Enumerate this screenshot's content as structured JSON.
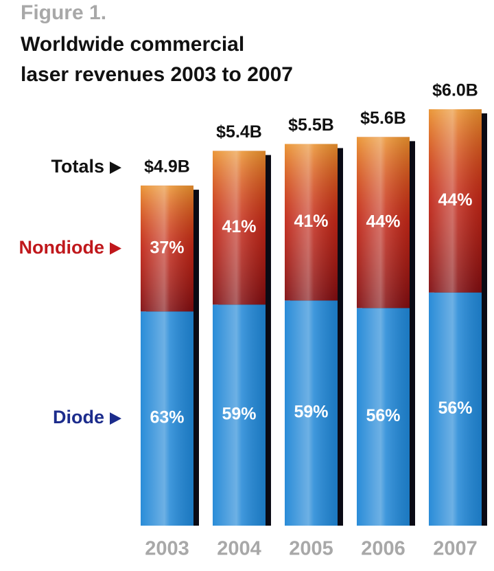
{
  "chart_data": {
    "type": "share_bar",
    "figure_label": "Figure 1.",
    "title": [
      "Worldwide commercial",
      "laser revenues 2003 to 2007"
    ],
    "categories": [
      "2003",
      "2004",
      "2005",
      "2006",
      "2007"
    ],
    "totals_label": "Totals",
    "totals": {
      "values": [
        4.9,
        5.4,
        5.5,
        5.6,
        6.0
      ],
      "value_labels": [
        "$4.9B",
        "$5.4B",
        "$5.5B",
        "$5.6B",
        "$6.0B"
      ]
    },
    "series": [
      {
        "name": "Diode",
        "color": "#1f86d6",
        "label_color": "#1c2c8c",
        "values": [
          63,
          59,
          59,
          56,
          56
        ],
        "value_labels": [
          "63%",
          "59%",
          "59%",
          "56%",
          "56%"
        ]
      },
      {
        "name": "Nondiode",
        "color": "#b3141a",
        "label_color": "#c0181c",
        "values": [
          37,
          41,
          41,
          44,
          44
        ],
        "value_labels": [
          "37%",
          "41%",
          "41%",
          "44%",
          "44%"
        ]
      }
    ],
    "ylim": [
      0,
      6
    ]
  }
}
